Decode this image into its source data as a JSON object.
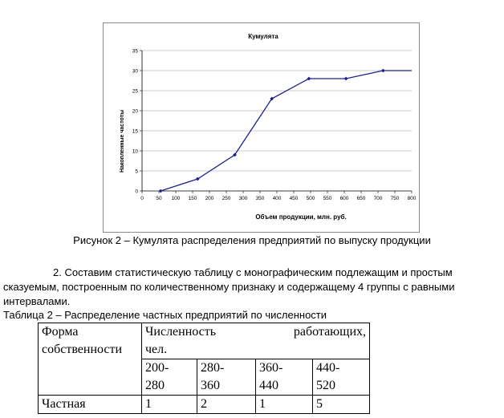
{
  "chart_data": {
    "type": "line",
    "title": "Кумулята",
    "xlabel": "Объем продукции, млн. руб.",
    "ylabel": "Накопленные частоты",
    "xlim": [
      0,
      800
    ],
    "ylim": [
      0,
      35
    ],
    "x_ticks": [
      "0",
      "50",
      "100",
      "150",
      "200",
      "250",
      "300",
      "350",
      "400",
      "450",
      "500",
      "550",
      "600",
      "650",
      "700",
      "750",
      "800"
    ],
    "y_ticks": [
      "0",
      "5",
      "10",
      "15",
      "20",
      "25",
      "30",
      "35"
    ],
    "grid": "horizontal",
    "line_color": "#1f1f8f",
    "series": [
      {
        "x": [
          55,
          165,
          275,
          385,
          495,
          605,
          715,
          800
        ],
        "y": [
          0,
          3,
          9,
          23,
          28,
          28,
          30,
          30
        ],
        "markers": [
          true,
          true,
          true,
          true,
          true,
          true,
          true,
          false
        ]
      }
    ]
  },
  "caption": "Рисунок 2 – Кумулята распределения предприятий по выпуску продукции",
  "paragraph": {
    "line1": "2. Составим статистическую таблицу с монографическим подлежащим и простым",
    "line2": "сказуемым, построенным по количественному признаку и содержащему 4 группы с равными",
    "line3": "интервалами."
  },
  "table_title": "Таблица 2 – Распределение частных предприятий по численности",
  "table": {
    "col1_header_line1": "Форма",
    "col1_header_line2": "собственности",
    "group_header_word1": "Численность",
    "group_header_word2": "работающих,",
    "group_header_line2": "чел.",
    "intervals": [
      {
        "line1": "200-",
        "line2": "280"
      },
      {
        "line1": "280-",
        "line2": "360"
      },
      {
        "line1": "360-",
        "line2": "440"
      },
      {
        "line1": "440-",
        "line2": "520"
      }
    ],
    "row_label": "Частная",
    "row_values": [
      "1",
      "2",
      "1",
      "5"
    ]
  }
}
